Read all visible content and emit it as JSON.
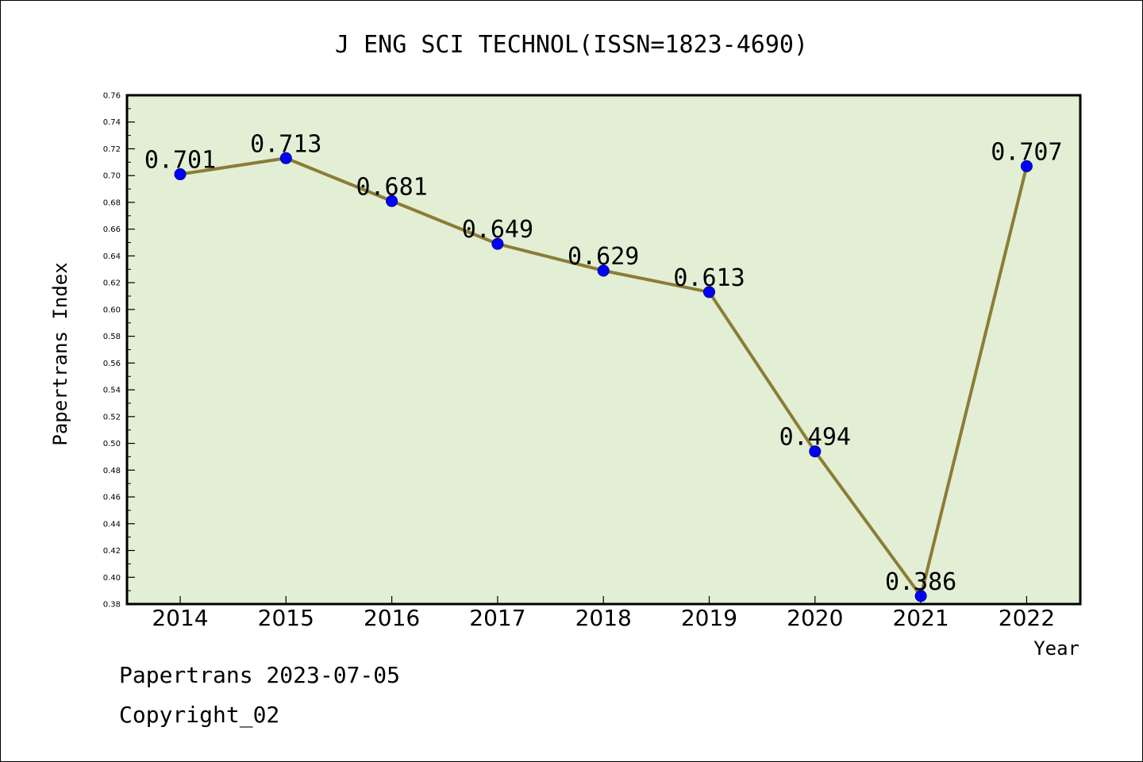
{
  "chart_data": {
    "type": "line",
    "title": "J ENG SCI TECHNOL(ISSN=1823-4690)",
    "xlabel": "Year",
    "ylabel": "Papertrans Index",
    "categories": [
      "2014",
      "2015",
      "2016",
      "2017",
      "2018",
      "2019",
      "2020",
      "2021",
      "2022"
    ],
    "series": [
      {
        "values": [
          0.701,
          0.713,
          0.681,
          0.649,
          0.629,
          0.613,
          0.494,
          0.386,
          0.707
        ],
        "labels": [
          "0.701",
          "0.713",
          "0.681",
          "0.649",
          "0.629",
          "0.613",
          "0.494",
          "0.386",
          "0.707"
        ]
      }
    ],
    "ylim": [
      0.38,
      0.76
    ],
    "yticks": [
      "0.38",
      "0.40",
      "0.42",
      "0.44",
      "0.46",
      "0.48",
      "0.50",
      "0.52",
      "0.54",
      "0.56",
      "0.58",
      "0.60",
      "0.62",
      "0.64",
      "0.66",
      "0.68",
      "0.70",
      "0.72",
      "0.74",
      "0.76"
    ],
    "grid": false,
    "legend": "none",
    "colors": {
      "plot_background": "#e2efd5",
      "line": "#8b7d35",
      "marker": "#0000ff"
    }
  },
  "footer": {
    "date_line": "Papertrans 2023-07-05",
    "copyright": "Copyright_02"
  }
}
